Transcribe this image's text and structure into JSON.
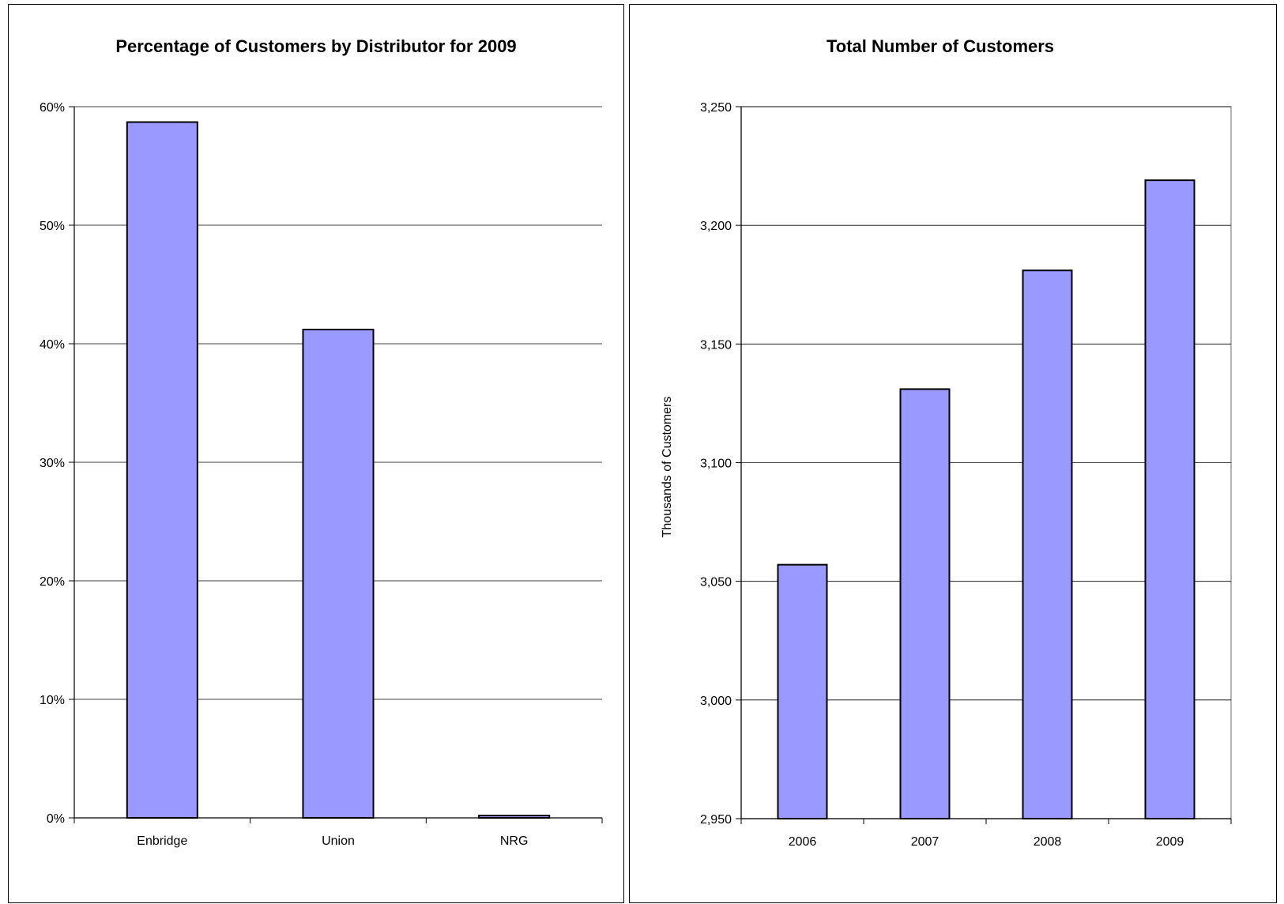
{
  "colors": {
    "bar_fill": "#9999ff",
    "bar_stroke": "#000000",
    "grid": "#000000",
    "plot_border": "#808080"
  },
  "chart_data": [
    {
      "type": "bar",
      "title": "Percentage of Customers by Distributor for 2009",
      "xlabel": "",
      "ylabel": "",
      "categories": [
        "Enbridge",
        "Union",
        "NRG"
      ],
      "values": [
        58.7,
        41.2,
        0.2
      ],
      "ylim": [
        0,
        60
      ],
      "yticks": [
        0,
        10,
        20,
        30,
        40,
        50,
        60
      ],
      "ytick_labels": [
        "0%",
        "10%",
        "20%",
        "30%",
        "40%",
        "50%",
        "60%"
      ],
      "grid": true,
      "legend": "none"
    },
    {
      "type": "bar",
      "title": "Total Number of Customers",
      "xlabel": "",
      "ylabel": "Thousands of Customers",
      "categories": [
        "2006",
        "2007",
        "2008",
        "2009"
      ],
      "values": [
        3057,
        3131,
        3181,
        3219
      ],
      "ylim": [
        2950,
        3250
      ],
      "yticks": [
        2950,
        3000,
        3050,
        3100,
        3150,
        3200,
        3250
      ],
      "ytick_labels": [
        "2,950",
        "3,000",
        "3,050",
        "3,100",
        "3,150",
        "3,200",
        "3,250"
      ],
      "grid": true,
      "legend": "none"
    }
  ]
}
